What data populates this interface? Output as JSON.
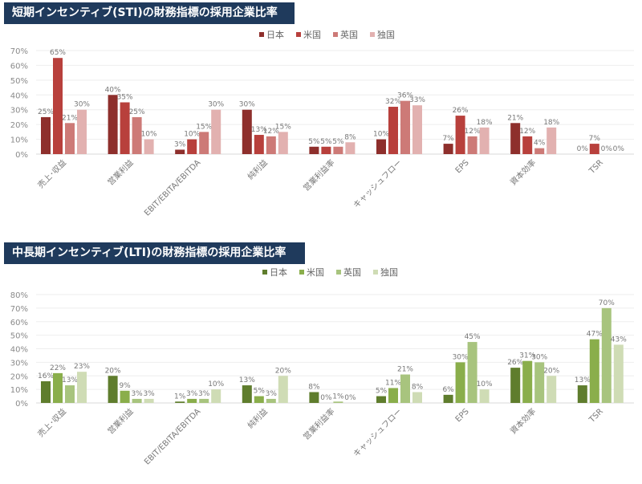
{
  "chart_data": [
    {
      "type": "bar",
      "title": "短期インセンティブ(STI)の財務指標の採用企業比率",
      "categories": [
        "売上･収益",
        "営業利益",
        "EBIT/EBITA/EBITDA",
        "純利益",
        "営業利益率",
        "キャッシュフロー",
        "EPS",
        "資本効率",
        "TSR"
      ],
      "yticks": [
        "0%",
        "10%",
        "20%",
        "30%",
        "40%",
        "50%",
        "60%",
        "70%"
      ],
      "ylim": [
        0,
        70
      ],
      "legend_position": "top-right",
      "series": [
        {
          "name": "日本",
          "color": "#8e2f2c",
          "values": [
            25,
            40,
            3,
            30,
            5,
            10,
            7,
            21,
            0
          ]
        },
        {
          "name": "米国",
          "color": "#b8403c",
          "values": [
            65,
            35,
            10,
            13,
            5,
            32,
            26,
            12,
            7
          ]
        },
        {
          "name": "英国",
          "color": "#cd7a77",
          "values": [
            21,
            25,
            15,
            12,
            5,
            36,
            12,
            4,
            0
          ]
        },
        {
          "name": "独国",
          "color": "#e2b1b0",
          "values": [
            30,
            10,
            30,
            15,
            8,
            33,
            18,
            18,
            0
          ]
        }
      ]
    },
    {
      "type": "bar",
      "title": "中長期インセンティブ(LTI)の財務指標の採用企業比率",
      "categories": [
        "売上･収益",
        "営業利益",
        "EBIT/EBITA/EBITDA",
        "純利益",
        "営業利益率",
        "キャッシュフロー",
        "EPS",
        "資本効率",
        "TSR"
      ],
      "yticks": [
        "0%",
        "10%",
        "20%",
        "30%",
        "40%",
        "50%",
        "60%",
        "70%",
        "80%"
      ],
      "ylim": [
        0,
        80
      ],
      "legend_position": "top-right",
      "series": [
        {
          "name": "日本",
          "color": "#5f7d2d",
          "values": [
            16,
            20,
            1,
            13,
            8,
            5,
            6,
            26,
            13
          ]
        },
        {
          "name": "米国",
          "color": "#8aae4b",
          "values": [
            22,
            9,
            3,
            5,
            0,
            11,
            30,
            31,
            47
          ]
        },
        {
          "name": "英国",
          "color": "#a8c47e",
          "values": [
            13,
            3,
            3,
            3,
            1,
            21,
            45,
            30,
            70
          ]
        },
        {
          "name": "独国",
          "color": "#cfdcb5",
          "values": [
            23,
            3,
            10,
            20,
            0,
            8,
            10,
            20,
            43
          ]
        }
      ]
    }
  ]
}
